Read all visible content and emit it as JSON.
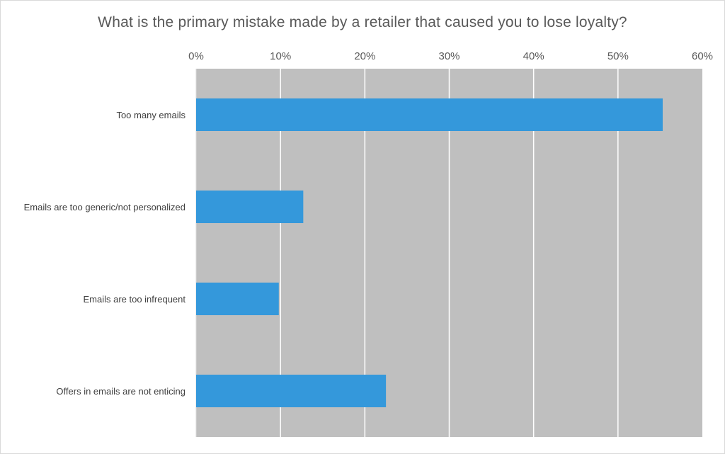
{
  "chart_data": {
    "type": "bar",
    "orientation": "horizontal",
    "title": "What is the primary mistake made by a retailer that caused you to lose loyalty?",
    "xlabel": "",
    "ylabel": "",
    "x_axis_position": "top",
    "xlim": [
      0,
      0.6
    ],
    "ticks": [
      "0%",
      "10%",
      "20%",
      "30%",
      "40%",
      "50%",
      "60%"
    ],
    "tick_values": [
      0,
      0.1,
      0.2,
      0.3,
      0.4,
      0.5,
      0.6
    ],
    "categories": [
      "Too many emails",
      "Emails are too generic/not personalized",
      "Emails are too infrequent",
      "Offers in emails are not enticing"
    ],
    "values": [
      0.553,
      0.127,
      0.098,
      0.225
    ],
    "grid": true,
    "legend": "none",
    "colors": {
      "bar": "#3498db",
      "plot_background": "#bfbfbf",
      "gridline": "#ffffff",
      "text": "#595959"
    }
  }
}
